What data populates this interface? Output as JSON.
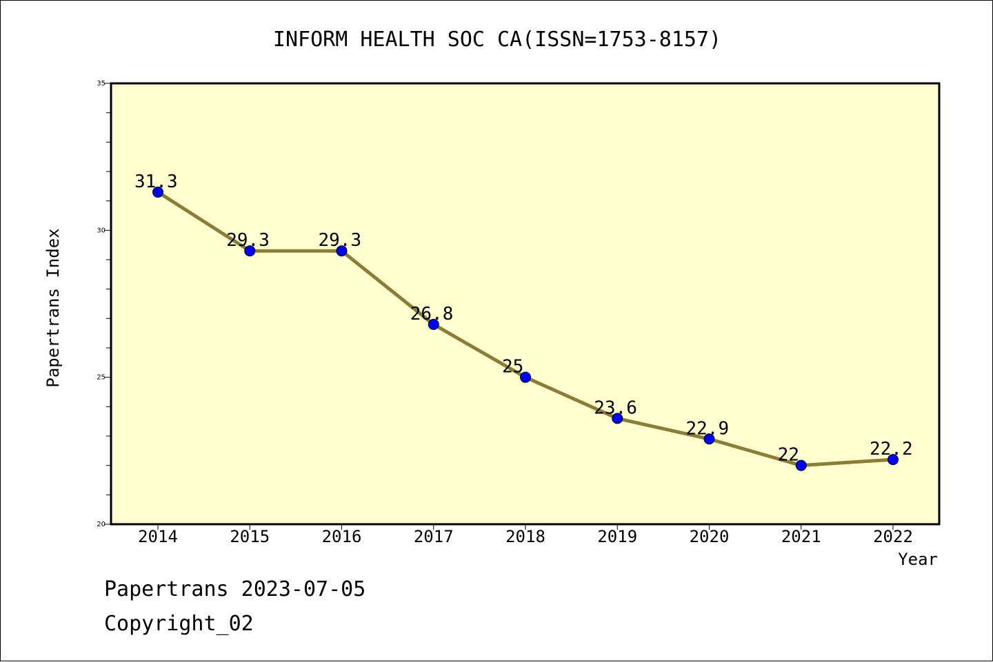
{
  "chart_data": {
    "type": "line",
    "title": "INFORM HEALTH SOC CA(ISSN=1753-8157)",
    "xlabel": "Year",
    "ylabel": "Papertrans Index",
    "categories": [
      "2014",
      "2015",
      "2016",
      "2017",
      "2018",
      "2019",
      "2020",
      "2021",
      "2022"
    ],
    "series": [
      {
        "values": [
          31.3,
          29.3,
          29.3,
          26.8,
          25,
          23.6,
          22.9,
          22,
          22.2
        ],
        "labels": [
          "31.3",
          "29.3",
          "29.3",
          "26.8",
          "25",
          "23.6",
          "22.9",
          "22",
          "22.2"
        ]
      }
    ],
    "ylim": [
      20,
      35
    ],
    "yticks": [
      "20",
      "25",
      "30",
      "35"
    ],
    "grid": false,
    "colors": {
      "plot_background": "#ffffd0",
      "line": "#8b7d35",
      "marker": "#0000ff"
    }
  },
  "footer": {
    "line1": "Papertrans 2023-07-05",
    "line2": "Copyright_02"
  }
}
